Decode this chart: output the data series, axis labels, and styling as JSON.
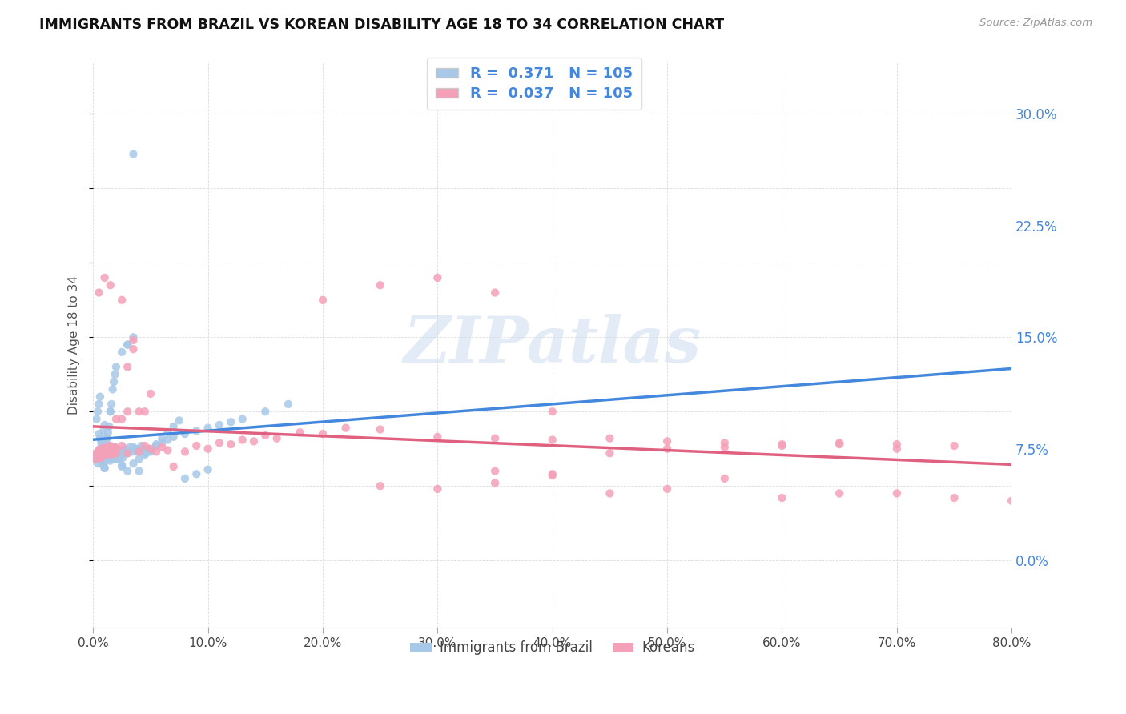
{
  "title": "IMMIGRANTS FROM BRAZIL VS KOREAN DISABILITY AGE 18 TO 34 CORRELATION CHART",
  "source": "Source: ZipAtlas.com",
  "xlabel_ticks": [
    "0.0%",
    "10.0%",
    "20.0%",
    "30.0%",
    "40.0%",
    "50.0%",
    "60.0%",
    "70.0%",
    "80.0%"
  ],
  "xlabel_vals": [
    0.0,
    0.1,
    0.2,
    0.3,
    0.4,
    0.5,
    0.6,
    0.7,
    0.8
  ],
  "ylabel": "Disability Age 18 to 34",
  "ylabel_ticks": [
    "0.0%",
    "7.5%",
    "15.0%",
    "22.5%",
    "30.0%"
  ],
  "ylabel_vals": [
    0.0,
    0.075,
    0.15,
    0.225,
    0.3
  ],
  "xmin": 0.0,
  "xmax": 0.8,
  "ymin": -0.045,
  "ymax": 0.335,
  "brazil_color": "#a8c8e8",
  "korean_color": "#f4a0b8",
  "brazil_R": 0.371,
  "brazil_N": 105,
  "korean_R": 0.037,
  "korean_N": 105,
  "brazil_trendline_color": "#4488dd",
  "korean_trendline_color": "#e06080",
  "dash_color": "#bbbbbb",
  "watermark_text": "ZIPatlas",
  "legend_brazil": "Immigrants from Brazil",
  "legend_korean": "Koreans",
  "brazil_scatter_x": [
    0.002,
    0.003,
    0.004,
    0.005,
    0.005,
    0.006,
    0.006,
    0.007,
    0.007,
    0.008,
    0.008,
    0.009,
    0.009,
    0.01,
    0.01,
    0.01,
    0.011,
    0.011,
    0.012,
    0.012,
    0.013,
    0.013,
    0.014,
    0.014,
    0.015,
    0.015,
    0.016,
    0.016,
    0.017,
    0.017,
    0.018,
    0.018,
    0.019,
    0.019,
    0.02,
    0.02,
    0.021,
    0.022,
    0.023,
    0.024,
    0.025,
    0.025,
    0.026,
    0.027,
    0.028,
    0.029,
    0.03,
    0.03,
    0.032,
    0.034,
    0.035,
    0.036,
    0.038,
    0.04,
    0.042,
    0.044,
    0.046,
    0.048,
    0.05,
    0.055,
    0.06,
    0.065,
    0.07,
    0.08,
    0.09,
    0.1,
    0.11,
    0.12,
    0.13,
    0.15,
    0.17,
    0.003,
    0.004,
    0.005,
    0.006,
    0.008,
    0.01,
    0.012,
    0.015,
    0.018,
    0.02,
    0.025,
    0.03,
    0.035,
    0.04,
    0.015,
    0.01,
    0.008,
    0.02,
    0.03,
    0.035,
    0.04,
    0.045,
    0.05,
    0.055,
    0.06,
    0.065,
    0.07,
    0.075,
    0.08,
    0.09,
    0.1,
    0.025,
    0.03,
    0.035
  ],
  "brazil_scatter_y": [
    0.068,
    0.072,
    0.065,
    0.07,
    0.085,
    0.075,
    0.082,
    0.068,
    0.079,
    0.08,
    0.073,
    0.087,
    0.069,
    0.071,
    0.066,
    0.091,
    0.074,
    0.078,
    0.077,
    0.082,
    0.069,
    0.086,
    0.072,
    0.09,
    0.075,
    0.1,
    0.068,
    0.105,
    0.071,
    0.115,
    0.073,
    0.12,
    0.076,
    0.125,
    0.069,
    0.13,
    0.072,
    0.068,
    0.07,
    0.074,
    0.071,
    0.14,
    0.069,
    0.073,
    0.075,
    0.072,
    0.074,
    0.145,
    0.076,
    0.073,
    0.15,
    0.075,
    0.073,
    0.075,
    0.077,
    0.074,
    0.072,
    0.075,
    0.073,
    0.077,
    0.079,
    0.081,
    0.083,
    0.085,
    0.087,
    0.089,
    0.091,
    0.093,
    0.095,
    0.1,
    0.105,
    0.095,
    0.1,
    0.105,
    0.11,
    0.065,
    0.062,
    0.082,
    0.1,
    0.068,
    0.072,
    0.063,
    0.145,
    0.076,
    0.06,
    0.067,
    0.062,
    0.065,
    0.068,
    0.072,
    0.065,
    0.068,
    0.071,
    0.074,
    0.078,
    0.082,
    0.086,
    0.09,
    0.094,
    0.055,
    0.058,
    0.061,
    0.064,
    0.06,
    0.273
  ],
  "korean_scatter_x": [
    0.002,
    0.003,
    0.004,
    0.005,
    0.005,
    0.006,
    0.006,
    0.007,
    0.007,
    0.008,
    0.008,
    0.009,
    0.009,
    0.01,
    0.01,
    0.011,
    0.011,
    0.012,
    0.012,
    0.013,
    0.013,
    0.014,
    0.014,
    0.015,
    0.015,
    0.016,
    0.016,
    0.017,
    0.017,
    0.018,
    0.018,
    0.019,
    0.019,
    0.02,
    0.02,
    0.025,
    0.025,
    0.03,
    0.03,
    0.035,
    0.04,
    0.045,
    0.05,
    0.055,
    0.06,
    0.065,
    0.07,
    0.08,
    0.09,
    0.1,
    0.11,
    0.12,
    0.13,
    0.14,
    0.15,
    0.16,
    0.18,
    0.2,
    0.22,
    0.25,
    0.3,
    0.35,
    0.4,
    0.45,
    0.5,
    0.55,
    0.6,
    0.65,
    0.7,
    0.75,
    0.005,
    0.01,
    0.015,
    0.02,
    0.025,
    0.03,
    0.035,
    0.04,
    0.045,
    0.05,
    0.2,
    0.25,
    0.3,
    0.35,
    0.4,
    0.25,
    0.3,
    0.35,
    0.4,
    0.45,
    0.5,
    0.55,
    0.6,
    0.65,
    0.7,
    0.75,
    0.8,
    0.35,
    0.4,
    0.45,
    0.5,
    0.55,
    0.6,
    0.65,
    0.7
  ],
  "korean_scatter_y": [
    0.068,
    0.072,
    0.07,
    0.074,
    0.069,
    0.073,
    0.071,
    0.075,
    0.069,
    0.073,
    0.071,
    0.074,
    0.072,
    0.075,
    0.073,
    0.076,
    0.071,
    0.074,
    0.072,
    0.075,
    0.073,
    0.076,
    0.074,
    0.077,
    0.075,
    0.073,
    0.071,
    0.074,
    0.072,
    0.075,
    0.073,
    0.076,
    0.074,
    0.072,
    0.075,
    0.077,
    0.175,
    0.13,
    0.072,
    0.142,
    0.073,
    0.077,
    0.075,
    0.073,
    0.076,
    0.074,
    0.063,
    0.073,
    0.077,
    0.075,
    0.079,
    0.078,
    0.081,
    0.08,
    0.084,
    0.082,
    0.086,
    0.085,
    0.089,
    0.088,
    0.083,
    0.082,
    0.081,
    0.082,
    0.08,
    0.079,
    0.078,
    0.079,
    0.078,
    0.077,
    0.18,
    0.19,
    0.185,
    0.095,
    0.095,
    0.1,
    0.148,
    0.1,
    0.1,
    0.112,
    0.175,
    0.185,
    0.19,
    0.18,
    0.1,
    0.05,
    0.048,
    0.052,
    0.058,
    0.045,
    0.048,
    0.055,
    0.042,
    0.045,
    0.045,
    0.042,
    0.04,
    0.06,
    0.057,
    0.072,
    0.075,
    0.076,
    0.077,
    0.078,
    0.075
  ]
}
